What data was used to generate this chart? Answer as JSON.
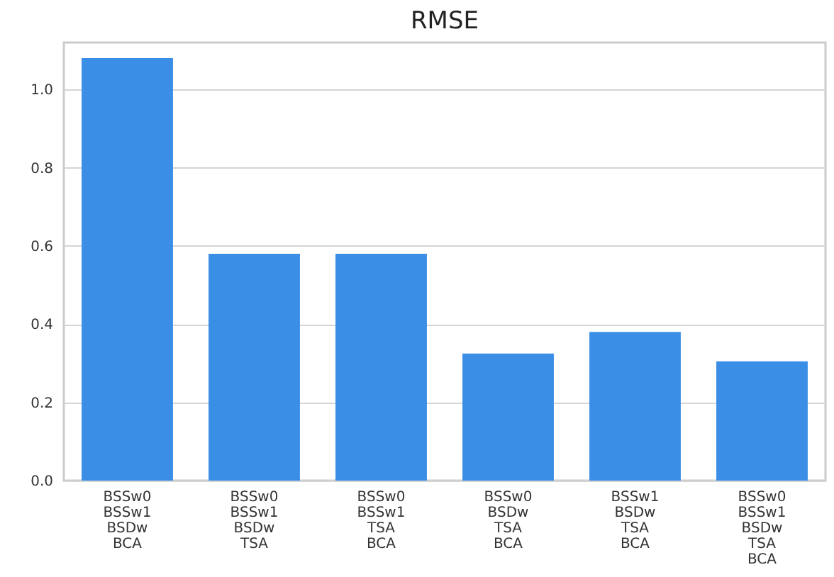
{
  "chart_data": {
    "type": "bar",
    "title": "RMSE",
    "categories": [
      "BSSw0\nBSSw1\nBSDw\nBCA",
      "BSSw0\nBSSw1\nBSDw\nTSA",
      "BSSw0\nBSSw1\nTSA\nBCA",
      "BSSw0\nBSDw\nTSA\nBCA",
      "BSSw1\nBSDw\nTSA\nBCA",
      "BSSw0\nBSSw1\nBSDw\nTSA\nBCA"
    ],
    "values": [
      1.08,
      0.58,
      0.58,
      0.325,
      0.38,
      0.305
    ],
    "color": "#3a8ee6",
    "ylim": [
      0,
      1.12
    ],
    "yticks": [
      {
        "value": 0,
        "label": "0.0"
      },
      0.2,
      0.4,
      0.6,
      0.8,
      {
        "value": 1,
        "label": "1.0"
      }
    ],
    "grid": "y"
  }
}
